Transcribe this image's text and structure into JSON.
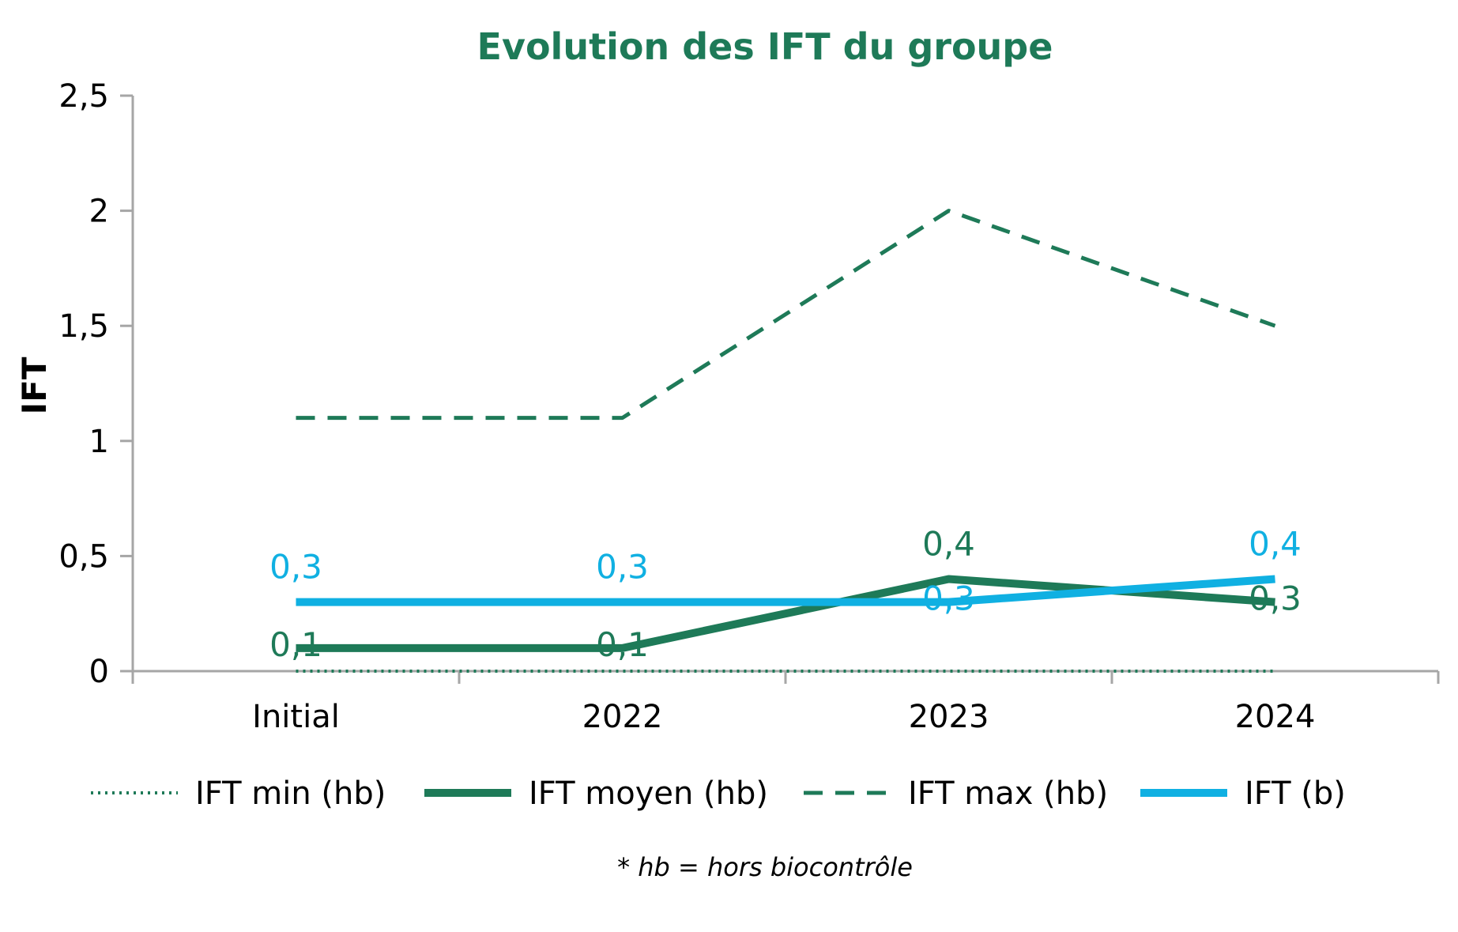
{
  "colors": {
    "dark_green": "#1e7a58",
    "light_blue": "#10b0e2",
    "axis": "#a6a6a6"
  },
  "chart_data": {
    "type": "line",
    "title": "Evolution des IFT du groupe",
    "ylabel": "IFT",
    "xlabel": "",
    "categories": [
      "Initial",
      "2022",
      "2023",
      "2024"
    ],
    "ylim": [
      0,
      2.5
    ],
    "yticks": [
      0,
      0.5,
      1,
      1.5,
      2,
      2.5
    ],
    "ytick_labels": [
      "0",
      "0,5",
      "1",
      "1,5",
      "2",
      "2,5"
    ],
    "grid": false,
    "legend_position": "bottom",
    "series": [
      {
        "name": "IFT min (hb)",
        "values": [
          0,
          0,
          0,
          0
        ],
        "style": "dotted",
        "color": "#1e7a58",
        "labels": null
      },
      {
        "name": "IFT moyen (hb)",
        "values": [
          0.1,
          0.1,
          0.4,
          0.3
        ],
        "style": "solid-thick",
        "color": "#1e7a58",
        "labels": [
          "0,1",
          "0,1",
          "0,4",
          "0,3"
        ]
      },
      {
        "name": "IFT max (hb)",
        "values": [
          1.1,
          1.1,
          2.0,
          1.5
        ],
        "style": "dashed",
        "color": "#1e7a58",
        "labels": null
      },
      {
        "name": "IFT (b)",
        "values": [
          0.3,
          0.3,
          0.3,
          0.4
        ],
        "style": "solid-thick",
        "color": "#10b0e2",
        "labels": [
          "0,3",
          "0,3",
          "0,3",
          "0,4"
        ]
      }
    ],
    "footnote": "* hb = hors biocontrôle"
  }
}
